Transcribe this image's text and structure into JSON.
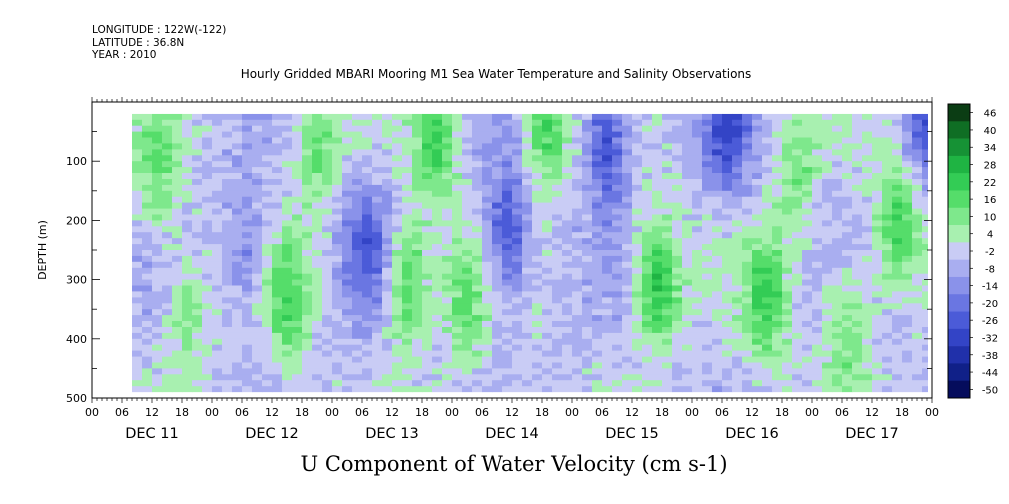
{
  "header": {
    "longitude": "LONGITUDE : 122W(-122)",
    "latitude": "LATITUDE : 36.8N",
    "year": "YEAR : 2010",
    "title": "Hourly Gridded MBARI Mooring M1 Sea Water Temperature and Salinity Observations"
  },
  "chart_data": {
    "type": "heatmap",
    "title": "Hourly Gridded MBARI Mooring M1 Sea Water Temperature and Salinity Observations",
    "xlabel": "U Component of Water Velocity (cm s-1)",
    "ylabel": "DEPTH (m)",
    "x_start": "2010-12-11 00:00",
    "x_end": "2010-12-18 00:00",
    "x_tick_labels": [
      "00",
      "06",
      "12",
      "18",
      "00",
      "06",
      "12",
      "18",
      "00",
      "06",
      "12",
      "18",
      "00",
      "06",
      "12",
      "18",
      "00",
      "06",
      "12",
      "18",
      "00",
      "06",
      "12",
      "18",
      "00",
      "06",
      "12",
      "18",
      "00"
    ],
    "day_labels": [
      "DEC 11",
      "DEC 12",
      "DEC 13",
      "DEC 14",
      "DEC 15",
      "DEC 16",
      "DEC 17"
    ],
    "ylim": [
      500,
      0
    ],
    "y_ticks": [
      100,
      200,
      300,
      400,
      500
    ],
    "data_extent_depth_m": [
      20,
      490
    ],
    "data_start_hour": 8,
    "grid": false,
    "colorbar": {
      "levels": [
        "46",
        "40",
        "34",
        "28",
        "22",
        "16",
        "10",
        "4",
        "-2",
        "-8",
        "-14",
        "-20",
        "-26",
        "-32",
        "-38",
        "-44",
        "-50"
      ],
      "colors": [
        "#0b3d14",
        "#0f6e24",
        "#169235",
        "#1fb443",
        "#33cc55",
        "#55dd6a",
        "#7ee88c",
        "#a8f0b0",
        "#c9ccf5",
        "#a9aef0",
        "#8a92ea",
        "#6a76e2",
        "#4b5bd8",
        "#3344c6",
        "#2030aa",
        "#102088",
        "#050c5c"
      ]
    },
    "series": [
      {
        "day": "DEC 11",
        "hour": 12,
        "depth_m": 120,
        "u_cm_s": 16
      },
      {
        "day": "DEC 11",
        "hour": 18,
        "depth_m": 350,
        "u_cm_s": 14
      },
      {
        "day": "DEC 12",
        "hour": 6,
        "depth_m": 250,
        "u_cm_s": -14
      },
      {
        "day": "DEC 12",
        "hour": 14,
        "depth_m": 330,
        "u_cm_s": 20
      },
      {
        "day": "DEC 12",
        "hour": 20,
        "depth_m": 60,
        "u_cm_s": 18
      },
      {
        "day": "DEC 13",
        "hour": 6,
        "depth_m": 240,
        "u_cm_s": -20
      },
      {
        "day": "DEC 13",
        "hour": 14,
        "depth_m": 300,
        "u_cm_s": 24
      },
      {
        "day": "DEC 13",
        "hour": 20,
        "depth_m": 60,
        "u_cm_s": 22
      },
      {
        "day": "DEC 14",
        "hour": 2,
        "depth_m": 340,
        "u_cm_s": 16
      },
      {
        "day": "DEC 14",
        "hour": 10,
        "depth_m": 220,
        "u_cm_s": -26
      },
      {
        "day": "DEC 14",
        "hour": 18,
        "depth_m": 40,
        "u_cm_s": 22
      },
      {
        "day": "DEC 15",
        "hour": 6,
        "depth_m": 60,
        "u_cm_s": -26
      },
      {
        "day": "DEC 15",
        "hour": 16,
        "depth_m": 300,
        "u_cm_s": 28
      },
      {
        "day": "DEC 16",
        "hour": 6,
        "depth_m": 40,
        "u_cm_s": -24
      },
      {
        "day": "DEC 16",
        "hour": 14,
        "depth_m": 330,
        "u_cm_s": 22
      },
      {
        "day": "DEC 16",
        "hour": 20,
        "depth_m": 120,
        "u_cm_s": 14
      },
      {
        "day": "DEC 17",
        "hour": 6,
        "depth_m": 380,
        "u_cm_s": 18
      },
      {
        "day": "DEC 17",
        "hour": 16,
        "depth_m": 200,
        "u_cm_s": 22
      },
      {
        "day": "DEC 17",
        "hour": 22,
        "depth_m": 30,
        "u_cm_s": -20
      }
    ]
  }
}
